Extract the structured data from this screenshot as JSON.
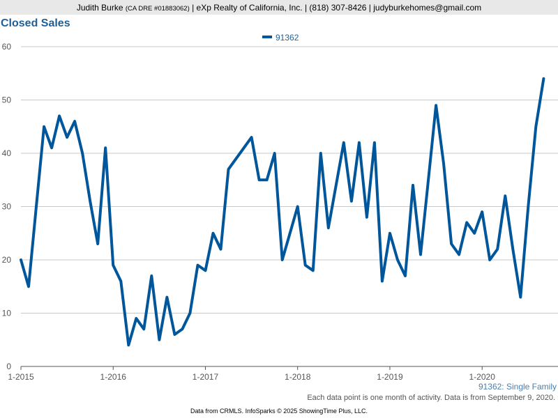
{
  "header": {
    "agent_name": "Judith Burke",
    "license": "(CA DRE #01883062)",
    "company": "| eXp Realty of California, Inc. | (818) 307-8426 | judyburkehomes@gmail.com"
  },
  "chart_data": {
    "type": "line",
    "title": "Closed Sales",
    "subtitle": "91362: Single Family",
    "note": "Each data point is one month of activity. Data is from September 9, 2020.",
    "footer": "Data from CRMLS. InfoSparks © 2025 ShowingTime Plus, LLC.",
    "legend_position": "top-center",
    "grid": true,
    "ylim": [
      0,
      60
    ],
    "y_ticks": [
      "0",
      "10",
      "20",
      "30",
      "40",
      "50",
      "60"
    ],
    "x_ticks": [
      "1-2015",
      "1-2016",
      "1-2017",
      "1-2018",
      "1-2019",
      "1-2020"
    ],
    "x_start": "2015-01",
    "color": "#00569a",
    "series": [
      {
        "name": "91362",
        "values": [
          20,
          15,
          30,
          45,
          41,
          47,
          43,
          46,
          40,
          31,
          23,
          41,
          19,
          16,
          4,
          9,
          7,
          17,
          5,
          13,
          6,
          7,
          10,
          19,
          18,
          25,
          22,
          37,
          39,
          41,
          43,
          35,
          35,
          40,
          20,
          25,
          30,
          19,
          18,
          40,
          26,
          34,
          42,
          31,
          42,
          28,
          42,
          16,
          25,
          20,
          17,
          34,
          21,
          35,
          49,
          38,
          23,
          21,
          27,
          25,
          29,
          20,
          22,
          32,
          22,
          13,
          30,
          45,
          54
        ]
      }
    ]
  }
}
